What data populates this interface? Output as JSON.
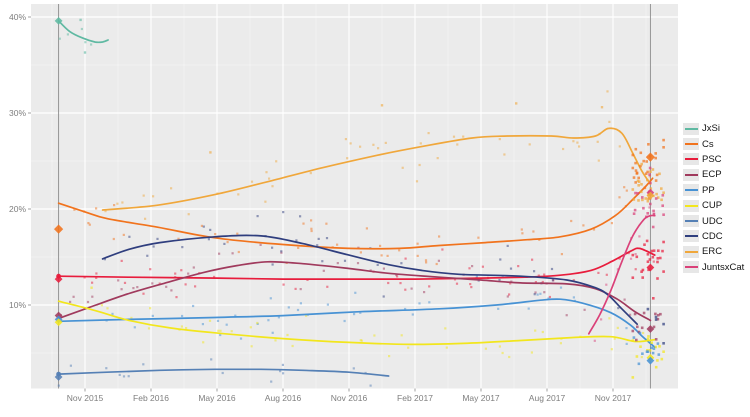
{
  "chart": {
    "background": "#FFFFFF",
    "panel_color": "#EBEBEB",
    "grid_major_color": "#FFFFFF",
    "grid_minor_color": "#F4F4F4",
    "axis_text_color": "#7E7E7E",
    "tick_color": "#8A8A8A",
    "ref_line_color": "#8C8C8C"
  },
  "x_axis": {
    "unit": "months since Nov 2015",
    "ticks": [
      {
        "t": 0,
        "label": "Nov 2015"
      },
      {
        "t": 3,
        "label": "Feb 2016"
      },
      {
        "t": 6,
        "label": "May 2016"
      },
      {
        "t": 9,
        "label": "Aug 2016"
      },
      {
        "t": 12,
        "label": "Nov 2016"
      },
      {
        "t": 15,
        "label": "Feb 2017"
      },
      {
        "t": 18,
        "label": "May 2017"
      },
      {
        "t": 21,
        "label": "Aug 2017"
      },
      {
        "t": 24,
        "label": "Nov 2017"
      }
    ]
  },
  "y_axis": {
    "unit": "% vote intention",
    "range": [
      1.3,
      41.3
    ],
    "ticks": [
      {
        "v": 10,
        "label": "10%"
      },
      {
        "v": 20,
        "label": "20%"
      },
      {
        "v": 30,
        "label": "30%"
      },
      {
        "v": 40,
        "label": "40%"
      }
    ]
  },
  "legend": {
    "items": [
      {
        "label": "JxSi",
        "color": "#5FB9A2"
      },
      {
        "label": "Cs",
        "color": "#F1731D"
      },
      {
        "label": "PSC",
        "color": "#E81C3C"
      },
      {
        "label": "ECP",
        "color": "#A03A5D"
      },
      {
        "label": "PP",
        "color": "#4792D4"
      },
      {
        "label": "CUP",
        "color": "#F2E61C"
      },
      {
        "label": "UDC",
        "color": "#5580B5"
      },
      {
        "label": "CDC",
        "color": "#2F3E7E"
      },
      {
        "label": "ERC",
        "color": "#F0A73B"
      },
      {
        "label": "JuntsxCat",
        "color": "#DA4179"
      }
    ]
  },
  "chart_data": {
    "type": "line",
    "title": "",
    "xlabel": "",
    "ylabel": "",
    "grid": true,
    "legend_position": "right",
    "reference_lines": [
      {
        "t": -1.2,
        "name": "catalan-election-sep-2015"
      },
      {
        "t": 25.7,
        "name": "catalan-election-dec-2017"
      }
    ],
    "series": [
      {
        "name": "JxSi",
        "color": "#5FB9A2",
        "scatter_n": 5,
        "scatter_sd": 1.0,
        "points": [
          [
            -1.2,
            39.6
          ],
          [
            -0.7,
            38.5
          ],
          [
            -0.1,
            37.8
          ],
          [
            0.45,
            37.4
          ],
          [
            0.8,
            37.4
          ],
          [
            1.05,
            37.6
          ]
        ]
      },
      {
        "name": "Cs",
        "color": "#F1731D",
        "scatter_n": 52,
        "scatter_sd": 1.4,
        "points": [
          [
            -1.2,
            20.6
          ],
          [
            0,
            19.7
          ],
          [
            1,
            19.0
          ],
          [
            3.3,
            18.1
          ],
          [
            5.9,
            17.0
          ],
          [
            9,
            16.3
          ],
          [
            12,
            15.9
          ],
          [
            14.3,
            15.9
          ],
          [
            16.1,
            16.2
          ],
          [
            18.2,
            16.5
          ],
          [
            20.1,
            16.8
          ],
          [
            21.6,
            17.1
          ],
          [
            23,
            17.9
          ],
          [
            24.1,
            19.3
          ],
          [
            24.9,
            21.0
          ],
          [
            25.5,
            22.4
          ],
          [
            25.8,
            23.2
          ]
        ]
      },
      {
        "name": "PSC",
        "color": "#E81C3C",
        "scatter_n": 52,
        "scatter_sd": 1.3,
        "start_dot": true,
        "points": [
          [
            -1.2,
            13.0
          ],
          [
            2,
            12.9
          ],
          [
            6,
            12.8
          ],
          [
            9,
            12.7
          ],
          [
            12,
            12.7
          ],
          [
            15,
            12.7
          ],
          [
            18,
            12.8
          ],
          [
            20,
            12.9
          ],
          [
            21.6,
            13.1
          ],
          [
            23,
            13.6
          ],
          [
            24,
            14.6
          ],
          [
            24.8,
            15.6
          ],
          [
            25.2,
            15.9
          ],
          [
            25.9,
            15.2
          ]
        ]
      },
      {
        "name": "ECP",
        "color": "#A03A5D",
        "scatter_n": 42,
        "scatter_sd": 1.3,
        "points": [
          [
            -1.2,
            8.6
          ],
          [
            0.5,
            10.0
          ],
          [
            2,
            11.2
          ],
          [
            3.5,
            12.2
          ],
          [
            5.4,
            13.4
          ],
          [
            6.9,
            14.1
          ],
          [
            8.3,
            14.5
          ],
          [
            9.9,
            14.3
          ],
          [
            12,
            13.8
          ],
          [
            13.8,
            13.3
          ],
          [
            16.1,
            12.9
          ],
          [
            18,
            12.6
          ],
          [
            19.8,
            12.3
          ],
          [
            21.9,
            12.2
          ],
          [
            23.2,
            11.7
          ],
          [
            24.2,
            10.6
          ],
          [
            25,
            9.3
          ],
          [
            25.7,
            8.4
          ]
        ]
      },
      {
        "name": "PP",
        "color": "#4792D4",
        "scatter_n": 42,
        "scatter_sd": 1.2,
        "points": [
          [
            -1.2,
            8.3
          ],
          [
            2,
            8.5
          ],
          [
            5.9,
            8.7
          ],
          [
            9,
            8.9
          ],
          [
            12.5,
            9.3
          ],
          [
            16.1,
            9.6
          ],
          [
            18.7,
            10.0
          ],
          [
            20.7,
            10.5
          ],
          [
            21.6,
            10.6
          ],
          [
            22.6,
            10.2
          ],
          [
            23.9,
            9.2
          ],
          [
            24.8,
            7.9
          ],
          [
            25.3,
            6.8
          ],
          [
            25.9,
            5.6
          ]
        ]
      },
      {
        "name": "CUP",
        "color": "#F2E61C",
        "scatter_n": 44,
        "scatter_sd": 1.1,
        "points": [
          [
            -1.2,
            10.4
          ],
          [
            0.5,
            9.4
          ],
          [
            2,
            8.4
          ],
          [
            3.9,
            7.6
          ],
          [
            5.9,
            7.1
          ],
          [
            9,
            6.5
          ],
          [
            12,
            6.1
          ],
          [
            14.8,
            5.9
          ],
          [
            17.2,
            6.0
          ],
          [
            19.8,
            6.3
          ],
          [
            22.1,
            6.6
          ],
          [
            23.9,
            6.7
          ],
          [
            25,
            6.2
          ],
          [
            25.9,
            6.4
          ]
        ]
      },
      {
        "name": "UDC",
        "color": "#5580B5",
        "scatter_n": 16,
        "scatter_sd": 0.7,
        "start_dot": true,
        "points": [
          [
            -1.2,
            2.8
          ],
          [
            1,
            3.0
          ],
          [
            3.4,
            3.2
          ],
          [
            5.9,
            3.3
          ],
          [
            8,
            3.3
          ],
          [
            9.9,
            3.2
          ],
          [
            12,
            3.0
          ],
          [
            13.8,
            2.6
          ]
        ]
      },
      {
        "name": "CDC",
        "color": "#2F3E7E",
        "scatter_n": 38,
        "scatter_sd": 1.5,
        "points": [
          [
            0.8,
            14.8
          ],
          [
            2,
            15.8
          ],
          [
            3.4,
            16.5
          ],
          [
            5.9,
            17.1
          ],
          [
            8,
            17.2
          ],
          [
            9.9,
            16.4
          ],
          [
            12,
            15.2
          ],
          [
            13.8,
            14.2
          ],
          [
            15.3,
            13.6
          ],
          [
            17,
            13.2
          ],
          [
            19.8,
            13.0
          ],
          [
            21.9,
            12.6
          ],
          [
            23.2,
            11.8
          ],
          [
            23.8,
            11.0
          ],
          [
            24.4,
            9.6
          ],
          [
            25.1,
            8.0
          ]
        ]
      },
      {
        "name": "ERC",
        "color": "#F0A73B",
        "scatter_n": 46,
        "scatter_sd": 1.5,
        "points": [
          [
            0.8,
            19.9
          ],
          [
            3.3,
            20.4
          ],
          [
            5.9,
            21.5
          ],
          [
            8.4,
            22.9
          ],
          [
            10.8,
            24.3
          ],
          [
            13.3,
            25.6
          ],
          [
            15.3,
            26.5
          ],
          [
            17.6,
            27.4
          ],
          [
            19.2,
            27.6
          ],
          [
            21.2,
            27.6
          ],
          [
            22.2,
            27.4
          ],
          [
            23.2,
            27.6
          ],
          [
            23.8,
            28.4
          ],
          [
            24.4,
            27.9
          ],
          [
            24.9,
            25.8
          ],
          [
            25.3,
            24.0
          ],
          [
            25.7,
            22.6
          ]
        ]
      },
      {
        "name": "JuntsxCat",
        "color": "#DA4179",
        "scatter_n": 10,
        "scatter_sd": 1.6,
        "points": [
          [
            22.9,
            7.0
          ],
          [
            23.4,
            9.0
          ],
          [
            23.9,
            11.5
          ],
          [
            24.4,
            14.5
          ],
          [
            24.9,
            17.2
          ],
          [
            25.4,
            18.9
          ],
          [
            25.7,
            19.3
          ],
          [
            25.9,
            19.3
          ]
        ]
      }
    ],
    "outlier_points": [
      {
        "series": "ERC",
        "t": 5.7,
        "v": 25.9
      },
      {
        "series": "ERC",
        "t": 13.5,
        "v": 30.8
      },
      {
        "series": "ERC",
        "t": 19.6,
        "v": 31.0
      },
      {
        "series": "ERC",
        "t": 23.5,
        "v": 30.6
      },
      {
        "series": "JxSi",
        "t": -0.2,
        "v": 39.7
      },
      {
        "series": "JxSi",
        "t": 0.0,
        "v": 36.3
      },
      {
        "series": "CUP",
        "t": 0.3,
        "v": 11.8
      }
    ],
    "election_results": {
      "sep_2015": {
        "t": -1.2,
        "marker": "diamond",
        "results": {
          "JxSi": 39.6,
          "Cs": 17.9,
          "PSC": 12.7,
          "ECP": 8.9,
          "PP": 8.5,
          "CUP": 8.2,
          "UDC": 2.5
        }
      },
      "dec_2017": {
        "t": 25.7,
        "marker": "diamond",
        "results": {
          "Cs": 25.4,
          "JuntsxCat": 21.7,
          "ERC": 21.4,
          "PSC": 13.9,
          "ECP": 7.5,
          "CUP": 4.5,
          "PP": 4.2
        }
      }
    },
    "end_cluster": {
      "t_center": 25.6,
      "t_min": 24.9,
      "t_max": 26.3,
      "sd": 1.4,
      "per_series": {
        "Cs": 26,
        "ERC": 26,
        "JuntsxCat": 20,
        "PSC": 24,
        "ECP": 13,
        "CUP": 15,
        "PP": 11,
        "CDC": 5
      }
    }
  }
}
